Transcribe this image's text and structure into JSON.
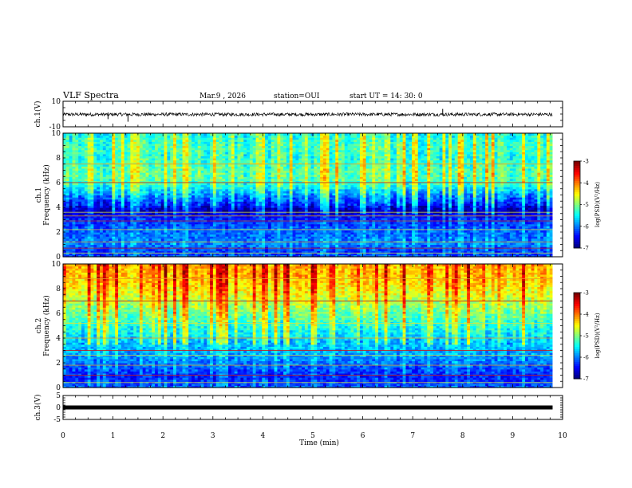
{
  "header": {
    "title": "VLF Spectra",
    "date": "Mar.9  , 2026",
    "station": "station=OUI",
    "start": "start  UT  =   14: 30: 0"
  },
  "chart_data": [
    {
      "type": "line",
      "name": "ch1-waveform",
      "ylabel": "ch.1(V)",
      "ylim": [
        -10,
        10
      ],
      "yticks": [
        "10",
        "-10"
      ],
      "xlim": [
        0,
        10
      ],
      "data_end_min": 9.8,
      "mean_V": -0.3,
      "noise_amp_V": 1.3,
      "spikes": [
        {
          "t": 0.9,
          "v": -4.0
        },
        {
          "t": 1.3,
          "v": -6.0
        },
        {
          "t": 7.6,
          "v": 4.0
        }
      ]
    },
    {
      "type": "heatmap",
      "name": "ch1-spectrogram",
      "ylabel": "ch.1\nFrequency (kHz)",
      "ylim": [
        0,
        10
      ],
      "yticks": [
        "0",
        "2",
        "4",
        "6",
        "8",
        "10"
      ],
      "xlim": [
        0,
        10
      ],
      "data_end_min": 9.8,
      "colorbar": {
        "label": "log(PSD)(V²/Hz)",
        "range": [
          -7,
          -3
        ],
        "ticks": [
          "-3",
          "-4",
          "-5",
          "-6",
          "-7"
        ]
      },
      "profile_log_psd": [
        [
          0,
          -6.2
        ],
        [
          0.5,
          -6.3
        ],
        [
          1,
          -6.0
        ],
        [
          2,
          -6.1
        ],
        [
          3,
          -6.3
        ],
        [
          3.5,
          -6.6
        ],
        [
          3.8,
          -6.8
        ],
        [
          4.2,
          -6.4
        ],
        [
          5,
          -5.9
        ],
        [
          6,
          -5.2
        ],
        [
          7,
          -5.1
        ],
        [
          8,
          -5.3
        ],
        [
          9,
          -5.2
        ],
        [
          10,
          -5.4
        ]
      ],
      "lines_kHz": [
        0.3,
        0.7,
        1.2,
        2.2,
        2.9,
        3.3,
        3.6,
        6.0,
        7.5
      ]
    },
    {
      "type": "heatmap",
      "name": "ch2-spectrogram",
      "ylabel": "ch.2\nFrequency (kHz)",
      "ylim": [
        0,
        10
      ],
      "yticks": [
        "0",
        "2",
        "4",
        "6",
        "8",
        "10"
      ],
      "xlim": [
        0,
        10
      ],
      "data_end_min": 9.8,
      "colorbar": {
        "label": "log(PSD)(V²/Hz)",
        "range": [
          -7,
          -3
        ],
        "ticks": [
          "-3",
          "-4",
          "-5",
          "-6",
          "-7"
        ]
      },
      "profile_log_psd": [
        [
          0,
          -6.1
        ],
        [
          0.8,
          -6.4
        ],
        [
          1.5,
          -6.2
        ],
        [
          2.2,
          -6.0
        ],
        [
          3,
          -5.8
        ],
        [
          4,
          -5.6
        ],
        [
          5,
          -5.3
        ],
        [
          6,
          -5.0
        ],
        [
          7,
          -4.7
        ],
        [
          8,
          -4.4
        ],
        [
          9,
          -4.2
        ],
        [
          10,
          -4.1
        ]
      ],
      "lines_kHz": [
        0.4,
        1.0,
        1.8,
        2.6,
        3.0,
        4.0,
        5.2,
        7.0,
        8.8
      ]
    },
    {
      "type": "line",
      "name": "ch3-waveform",
      "ylabel": "ch.3(V)",
      "ylim": [
        -5,
        5
      ],
      "yticks": [
        "5",
        "0",
        "-5"
      ],
      "xlim": [
        0,
        10
      ],
      "data_end_min": 9.8,
      "mean_V": 0.0,
      "noise_amp_V": 0.2,
      "xlabel": "Time (min)",
      "xticks": [
        "0",
        "1",
        "2",
        "3",
        "4",
        "5",
        "6",
        "7",
        "8",
        "9",
        "10"
      ]
    }
  ]
}
